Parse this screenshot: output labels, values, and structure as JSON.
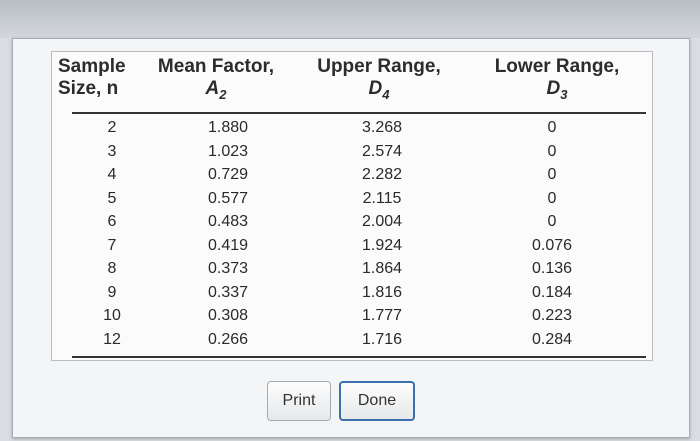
{
  "table": {
    "headers": {
      "sample_line1": "Sample",
      "sample_line2": "Size, n",
      "mean_line1": "Mean Factor,",
      "mean_symbol": "A",
      "mean_sub": "2",
      "upper_line1": "Upper Range,",
      "upper_symbol": "D",
      "upper_sub": "4",
      "lower_line1": "Lower Range,",
      "lower_symbol": "D",
      "lower_sub": "3"
    },
    "rows": [
      {
        "n": "2",
        "a2": "1.880",
        "d4": "3.268",
        "d3": "0"
      },
      {
        "n": "3",
        "a2": "1.023",
        "d4": "2.574",
        "d3": "0"
      },
      {
        "n": "4",
        "a2": "0.729",
        "d4": "2.282",
        "d3": "0"
      },
      {
        "n": "5",
        "a2": "0.577",
        "d4": "2.115",
        "d3": "0"
      },
      {
        "n": "6",
        "a2": "0.483",
        "d4": "2.004",
        "d3": "0"
      },
      {
        "n": "7",
        "a2": "0.419",
        "d4": "1.924",
        "d3": "0.076"
      },
      {
        "n": "8",
        "a2": "0.373",
        "d4": "1.864",
        "d3": "0.136"
      },
      {
        "n": "9",
        "a2": "0.337",
        "d4": "1.816",
        "d3": "0.184"
      },
      {
        "n": "10",
        "a2": "0.308",
        "d4": "1.777",
        "d3": "0.223"
      },
      {
        "n": "12",
        "a2": "0.266",
        "d4": "1.716",
        "d3": "0.284"
      }
    ]
  },
  "buttons": {
    "print_label": "Print",
    "done_label": "Done"
  }
}
